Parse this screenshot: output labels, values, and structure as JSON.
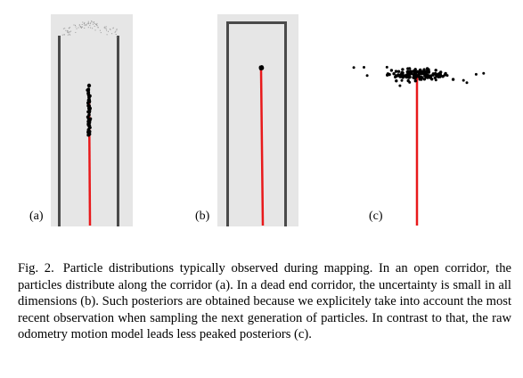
{
  "panels": [
    {
      "label": "(a)"
    },
    {
      "label": "(b)"
    },
    {
      "label": "(c)"
    }
  ],
  "caption": {
    "figure_number": "Fig. 2.",
    "text": "Particle distributions typically observed during mapping. In an open corridor, the particles distribute along the corridor (a). In a dead end corridor, the uncertainty is small in all dimensions (b). Such posteriors are obtained because we explicitely take into account the most recent observation when sampling the next generation of particles. In contrast to that, the raw odometry motion model leads less peaked posteriors (c)."
  },
  "colors": {
    "trajectory": "#e8191b",
    "corridor_background": "#e6e6e6",
    "wall": "#4a4a4a",
    "particle": "#000000"
  }
}
